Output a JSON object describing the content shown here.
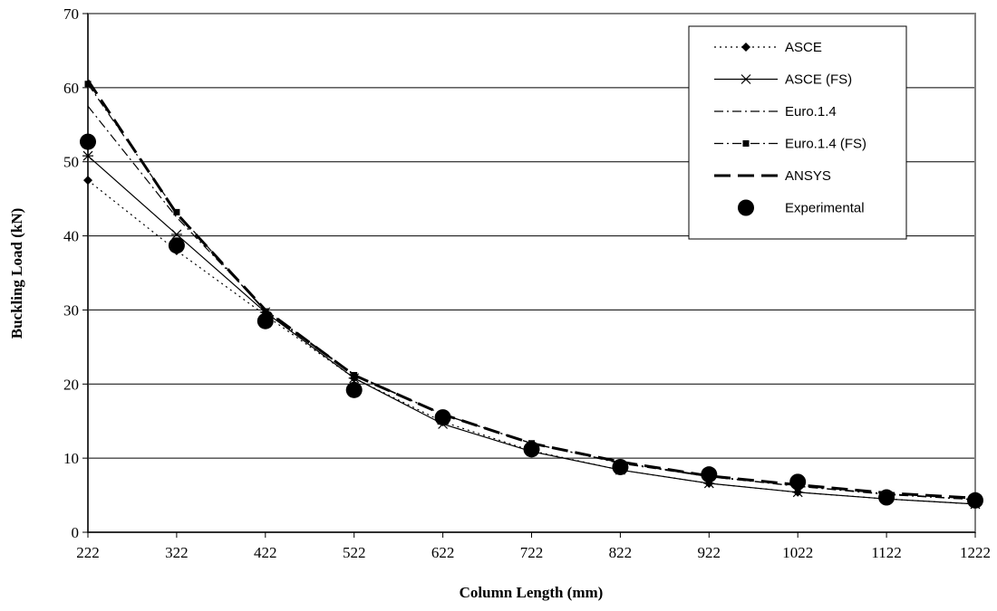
{
  "chart_data": {
    "type": "line",
    "title": "",
    "xlabel": "Column Length (mm)",
    "ylabel": "Buckling Load (kN)",
    "x": [
      222,
      322,
      422,
      522,
      622,
      722,
      822,
      922,
      1022,
      1122,
      1222
    ],
    "x_tick_labels": [
      "222",
      "322",
      "422",
      "522",
      "622",
      "722",
      "822",
      "922",
      "1022",
      "1122",
      "1222"
    ],
    "ylim": [
      0,
      70
    ],
    "y_ticks": [
      0,
      10,
      20,
      30,
      40,
      50,
      60,
      70
    ],
    "grid": "horizontal",
    "legend_position": "top-right",
    "series": [
      {
        "name": "ASCE",
        "style": "dotted",
        "marker": "diamond",
        "color": "#000000",
        "values": [
          47.5,
          38.0,
          29.3,
          20.8,
          14.9,
          11.0,
          8.4,
          6.6,
          5.4,
          4.5,
          3.8
        ]
      },
      {
        "name": "ASCE (FS)",
        "style": "solid",
        "marker": "asterisk",
        "color": "#000000",
        "values": [
          50.8,
          40.2,
          29.7,
          20.8,
          14.6,
          10.9,
          8.4,
          6.6,
          5.4,
          4.5,
          3.8
        ]
      },
      {
        "name": "Euro.1.4",
        "style": "dashdot",
        "marker": "none",
        "color": "#000000",
        "values": [
          57.5,
          42.5,
          30.0,
          21.3,
          15.9,
          12.0,
          9.4,
          7.6,
          6.2,
          5.2,
          4.4
        ]
      },
      {
        "name": "Euro.1.4 (FS)",
        "style": "dashdot",
        "marker": "square",
        "color": "#000000",
        "values": [
          60.5,
          43.2,
          29.8,
          21.2,
          15.9,
          12.0,
          9.3,
          7.5,
          6.2,
          5.1,
          4.4
        ]
      },
      {
        "name": "ANSYS",
        "style": "longdash",
        "marker": "none",
        "color": "#000000",
        "values": [
          61.0,
          43.0,
          30.0,
          21.2,
          15.9,
          12.0,
          9.5,
          7.6,
          6.4,
          5.3,
          4.6
        ]
      },
      {
        "name": "Experimental",
        "style": "none",
        "marker": "circle",
        "color": "#000000",
        "values": [
          52.7,
          38.7,
          28.5,
          19.2,
          15.5,
          11.2,
          8.8,
          7.8,
          6.8,
          4.7,
          4.3
        ]
      }
    ]
  }
}
